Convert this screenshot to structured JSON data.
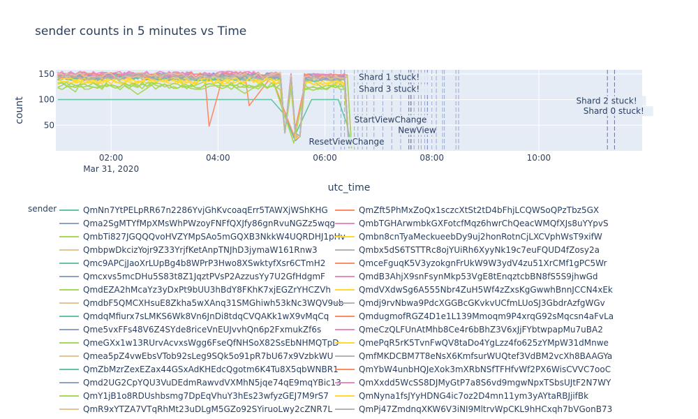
{
  "chart_data": {
    "type": "line",
    "title": "sender counts in 5 minutes vs Time",
    "xlabel": "utc_time",
    "ylabel": "count",
    "x_range": [
      "2020-03-31T00:58",
      "2020-03-31T11:56"
    ],
    "ylim": [
      0,
      158
    ],
    "x_ticks": [
      {
        "time": "2020-03-31T02:00",
        "label": "02:00",
        "sublabel": "Mar 31, 2020"
      },
      {
        "time": "2020-03-31T04:00",
        "label": "04:00",
        "sublabel": ""
      },
      {
        "time": "2020-03-31T06:00",
        "label": "06:00",
        "sublabel": ""
      },
      {
        "time": "2020-03-31T08:00",
        "label": "08:00",
        "sublabel": ""
      },
      {
        "time": "2020-03-31T10:00",
        "label": "10:00",
        "sublabel": ""
      }
    ],
    "y_ticks": [
      50,
      100,
      150
    ],
    "grid": true,
    "legend_title": "sender",
    "legend_placement": "bottom",
    "colors": [
      "#66c2a5",
      "#fc8d62",
      "#8da0cb",
      "#e78ac3",
      "#a6d854",
      "#ffd92f",
      "#e5c494",
      "#b3b3b3"
    ],
    "plot_background": "#e5ecf6",
    "series": [
      {
        "name": "QmNn7YtPELpRR67n2286YvjGhKvcoaqErr5TAWXjWShKHG",
        "level": 100,
        "x": [
          "2020-03-31T01:00",
          "2020-03-31T01:30",
          "2020-03-31T02:00",
          "2020-03-31T03:00",
          "2020-03-31T04:00",
          "2020-03-31T05:00",
          "2020-03-31T05:15",
          "2020-03-31T05:25",
          "2020-03-31T05:45",
          "2020-03-31T06:00",
          "2020-03-31T06:15",
          "2020-03-31T06:25",
          "2020-03-31T06:30"
        ],
        "y": [
          100,
          100,
          100,
          100,
          100,
          100,
          70,
          25,
          100,
          100,
          100,
          50,
          5
        ]
      },
      {
        "name": "QmZft5PhMxZoQx1sczcXtSt2tD4bFhjLCQWSoQPzTbz5GX",
        "level": 148,
        "x": [
          "2020-03-31T01:00",
          "2020-03-31T03:45",
          "2020-03-31T03:50",
          "2020-03-31T04:00",
          "2020-03-31T04:05",
          "2020-03-31T04:30",
          "2020-03-31T04:35",
          "2020-03-31T05:00",
          "2020-03-31T05:25",
          "2020-03-31T05:40",
          "2020-03-31T06:25",
          "2020-03-31T06:30"
        ],
        "y": [
          145,
          150,
          48,
          110,
          145,
          150,
          88,
          145,
          30,
          150,
          148,
          5
        ]
      },
      {
        "name": "Qma2SgMTYfMpXMsWhPWzoyFNFfQXJfy86gnRvuNGZz5wqg",
        "level": 147
      },
      {
        "name": "QmbTGHArwmbkGXFotcfMqz6hwrChQeacWMQfXJs8uYYpvS",
        "level": 149
      },
      {
        "name": "QmbTi827JGQQQvoHVZYMpSAo5mGQXB3NkkW4UQRDHJ1pHv",
        "level": 130,
        "x": [
          "2020-03-31T01:00",
          "2020-03-31T01:20",
          "2020-03-31T01:30",
          "2020-03-31T01:50",
          "2020-03-31T02:00",
          "2020-03-31T02:30",
          "2020-03-31T03:00",
          "2020-03-31T03:30",
          "2020-03-31T04:00",
          "2020-03-31T04:30",
          "2020-03-31T05:00",
          "2020-03-31T05:25",
          "2020-03-31T05:40",
          "2020-03-31T06:00",
          "2020-03-31T06:25",
          "2020-03-31T06:30"
        ],
        "y": [
          140,
          115,
          145,
          120,
          148,
          110,
          145,
          125,
          145,
          112,
          145,
          15,
          145,
          120,
          145,
          5
        ]
      },
      {
        "name": "Qmbn8cnTyaMeckueebDy9uj2honRotnCjLXCVphWsT9xifW",
        "level": 135
      },
      {
        "name": "QmbpwDkcizYojr9Z33YrjfKetAnpTNJhD3jymaW161Rnw3",
        "level": 146
      },
      {
        "name": "Qmbx5dS6TSTTRc8ojYUiRh6XyyNk19c7euFQUD4fZosy2a",
        "level": 144
      },
      {
        "name": "Qmc9APCjJaoXrLUpBg4b8WPrP3Hwo8XSwktyfXsr6CTmH2",
        "level": 143
      },
      {
        "name": "QmceFguqK5V3yzokgnFrUkW9W3ydV4zu51XrCMf1gPC5Wr",
        "level": 147
      },
      {
        "name": "Qmcxvs5mcDHu5S83t8Z1JqztPVsP2AzzusYy7U2GfHdgmF",
        "level": 145
      },
      {
        "name": "QmdB3AhjX9snFsynMkp53VgE8tEnqztcbBN8fS5S9jhwGd",
        "level": 149
      },
      {
        "name": "QmdEZA2hMcaYz3yDxPt9bUU3hBdY8FKhK7xjEGZrYHCZVh",
        "level": 125
      },
      {
        "name": "QmdVXdwSg6A555Nbr4ZuH5Wf4zZxsKgGwwhBnnJCCN4xEk",
        "level": 138
      },
      {
        "name": "QmdbF5QMCXHsuE8Zkha5wXAnq31SMGhiwh53kNc3WQV9ub",
        "level": 146
      },
      {
        "name": "Qmdj9rvNbwa9PdcXGGBcGKvkvUCfmLUoSJ3GbdrAzfgWGv",
        "level": 144
      },
      {
        "name": "QmdqMfiurx7sLMKS6Wk8Vn6JnDi8tdqCVQAKk1wX9vMqCq",
        "level": 142
      },
      {
        "name": "QmdugmofRGZ4D1e1L139Mmoqm9P4xrqG92sMqcsn4aFvLa",
        "level": 148
      },
      {
        "name": "Qme5vxFFs48V6Z4SYde8riceVnEUJvvhQn6p2FxmukZf6s",
        "level": 147
      },
      {
        "name": "QmeCzQLFUnAtMhb8Ce4r6bBhZ3V6xJjFYbtwpapMu7uBA2",
        "level": 149
      },
      {
        "name": "QmeGXx1w13RUrvAcvxsWgg6FseQfNHSoX82SsEbNHMQTpD",
        "level": 128
      },
      {
        "name": "QmePqR5rK5TvnFwQV8taDo4YgLzz4fo625zYMpW31dMnwe",
        "level": 136
      },
      {
        "name": "Qmea5pZ4vwEbsVTob92sLeg9SQk5o91pR7bU67x9VzbkWU",
        "level": 146
      },
      {
        "name": "QmfMKDCBM7T8eNsX6KmfsurWUQtef3VdBM2vcXh8BAAGYa",
        "level": 144
      },
      {
        "name": "QmZbMzrZexEZax44GSxAdKHEdcQgotm6K4Tu8X5qbWNBR1",
        "level": 143
      },
      {
        "name": "QmYbW4unbHQJeXok3mXRbNSfTFHfvWf2PX6WisCVVC7ooC",
        "level": 147
      },
      {
        "name": "Qmd2UG2CpYQU3VuDEdmRawvdVXMhN5jqe74qE9mqYBic13",
        "level": 145
      },
      {
        "name": "QmXxdd5WcSS8DJMyGtP7a8S6vd9mgwNpxTSbsUJtF2N7WY",
        "level": 149
      },
      {
        "name": "QmY1jB1o8RDUshbsmg7DpEqVhuY3hEs23wfyzGEJ7M9rS7",
        "level": 127
      },
      {
        "name": "QmNyna1fsJYyHDNG4ic7oz2D4mn11ym3yAYtaRBJjifBk",
        "level": 137
      },
      {
        "name": "QmR9xYTZA7VTqRhMt23uDLgM5GZo92SYiruoLwy2cZNR7L",
        "level": 146
      },
      {
        "name": "QmPj47ZmdnqXKW6V3iNI9MltrvWpCKL9hHCxqh7bVGonB73",
        "level": 144
      }
    ],
    "event_lines": [
      {
        "time": "2020-03-31T06:10",
        "color": "#8da0cb"
      },
      {
        "time": "2020-03-31T06:18",
        "color": "#8da0cb"
      },
      {
        "time": "2020-03-31T06:22",
        "color": "#8da0cb"
      },
      {
        "time": "2020-03-31T06:33",
        "color": "#8da0cb"
      },
      {
        "time": "2020-03-31T06:37",
        "color": "#8da0cb"
      },
      {
        "time": "2020-03-31T06:42",
        "color": "#8da0cb"
      },
      {
        "time": "2020-03-31T06:47",
        "color": "#8da0cb"
      },
      {
        "time": "2020-03-31T06:55",
        "color": "#8da0cb"
      },
      {
        "time": "2020-03-31T07:05",
        "color": "#8da0cb"
      },
      {
        "time": "2020-03-31T07:15",
        "color": "#8da0cb"
      },
      {
        "time": "2020-03-31T07:25",
        "color": "#8da0cb"
      },
      {
        "time": "2020-03-31T07:34",
        "color": "#6a6aa8"
      },
      {
        "time": "2020-03-31T07:36",
        "color": "#6a6aa8"
      },
      {
        "time": "2020-03-31T07:37",
        "color": "#8da0cb"
      },
      {
        "time": "2020-03-31T07:40",
        "color": "#8da0cb"
      },
      {
        "time": "2020-03-31T07:45",
        "color": "#8da0cb"
      },
      {
        "time": "2020-03-31T07:48",
        "color": "#8da0cb"
      },
      {
        "time": "2020-03-31T07:52",
        "color": "#8da0cb"
      },
      {
        "time": "2020-03-31T07:55",
        "color": "#6a6aa8"
      },
      {
        "time": "2020-03-31T08:00",
        "color": "#8da0cb"
      },
      {
        "time": "2020-03-31T08:05",
        "color": "#8da0cb"
      },
      {
        "time": "2020-03-31T08:12",
        "color": "#8da0cb"
      },
      {
        "time": "2020-03-31T08:14",
        "color": "#8da0cb"
      },
      {
        "time": "2020-03-31T08:27",
        "color": "#8da0cb"
      },
      {
        "time": "2020-03-31T08:30",
        "color": "#8da0cb"
      },
      {
        "time": "2020-03-31T11:17",
        "color": "#5a5a8a"
      },
      {
        "time": "2020-03-31T11:25",
        "color": "#5a5a8a"
      }
    ],
    "annotations": [
      {
        "text": "Shard 1 stuck!",
        "time": "2020-03-31T06:38",
        "y": 138
      },
      {
        "text": "Shard 3 stuck!",
        "time": "2020-03-31T06:38",
        "y": 115
      },
      {
        "text": "StartViewChange",
        "time": "2020-03-31T06:33",
        "y": 55
      },
      {
        "text": "NewView",
        "time": "2020-03-31T07:22",
        "y": 35
      },
      {
        "text": "ResetViewChange",
        "time": "2020-03-31T05:42",
        "y": 12
      },
      {
        "text": "Shard 2 stuck!",
        "time": "2020-03-31T10:42",
        "y": 92
      },
      {
        "text": "Shard 0 stuck!",
        "time": "2020-03-31T10:50",
        "y": 72
      }
    ]
  }
}
